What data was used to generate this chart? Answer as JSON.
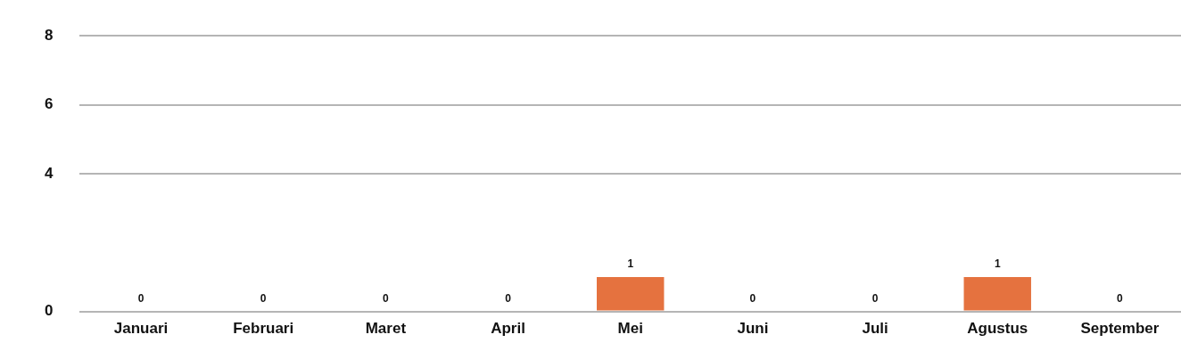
{
  "chart_data": {
    "type": "bar",
    "categories": [
      "Januari",
      "Februari",
      "Maret",
      "April",
      "Mei",
      "Juni",
      "Juli",
      "Agustus",
      "September"
    ],
    "values": [
      0,
      0,
      0,
      0,
      1,
      0,
      0,
      1,
      0
    ],
    "color": "#e5723f",
    "ylim": [
      0,
      8
    ],
    "yticks": [
      0,
      4,
      6,
      8
    ],
    "grid": "y",
    "data_labels": true
  }
}
